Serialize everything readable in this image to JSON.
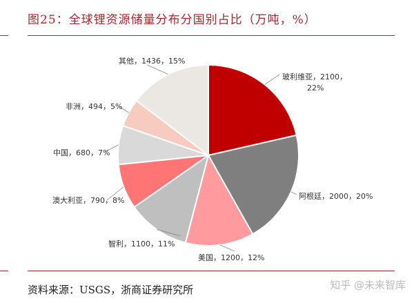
{
  "header": {
    "title": "图25：全球锂资源储量分布分国别占比（万吨，%）"
  },
  "footer": {
    "source": "资料来源：USGS，浙商证券研究所",
    "watermark": "知乎 @未来智库"
  },
  "chart_data": {
    "type": "pie",
    "title": "全球锂资源储量分布分国别占比（万吨，%）",
    "unit": "万吨",
    "start_angle_deg": 0,
    "direction": "clockwise",
    "slices": [
      {
        "name": "玻利维亚",
        "value": 2100,
        "percent": 22,
        "color": "#c00000",
        "label": "玻利维亚，2100，",
        "label2": "22%"
      },
      {
        "name": "阿根廷",
        "value": 2000,
        "percent": 20,
        "color": "#7f7f7f",
        "label": "阿根廷，2000，20%"
      },
      {
        "name": "美国",
        "value": 1200,
        "percent": 12,
        "color": "#ff9a9e",
        "label": "美国，1200，12%"
      },
      {
        "name": "智利",
        "value": 1100,
        "percent": 11,
        "color": "#bfbfbf",
        "label": "智利，1100，11%"
      },
      {
        "name": "澳大利亚",
        "value": 790,
        "percent": 8,
        "color": "#ff7474",
        "label": "澳大利亚，790，8%"
      },
      {
        "name": "中国",
        "value": 680,
        "percent": 7,
        "color": "#d9d9d9",
        "label": "中国，680，7%"
      },
      {
        "name": "非洲",
        "value": 494,
        "percent": 5,
        "color": "#f8cbc0",
        "label": "非洲，494，5%"
      },
      {
        "name": "其他",
        "value": 1436,
        "percent": 15,
        "color": "#ebe8e3",
        "label": "其他，1436，15%"
      }
    ]
  }
}
